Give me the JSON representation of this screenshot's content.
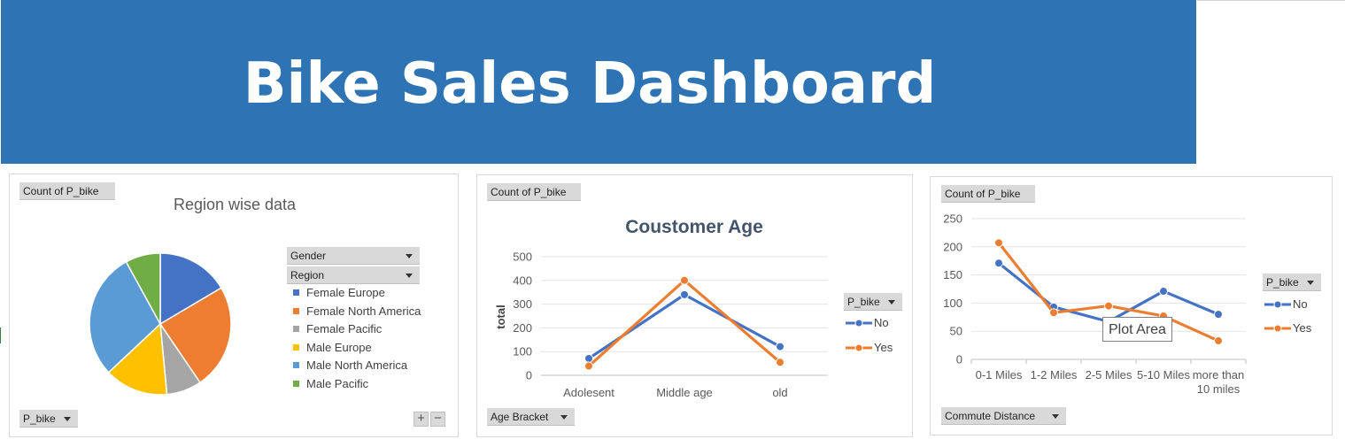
{
  "header": {
    "title": "Bike Sales Dashboard"
  },
  "colors": {
    "banner": "#2e74b5",
    "no": "#4472c4",
    "yes": "#ed7d31"
  },
  "pie_panel": {
    "field_button": "Count of P_bike",
    "filter_gender": "Gender",
    "filter_region": "Region",
    "filter_bottom": "P_bike",
    "plus": "+",
    "minus": "−"
  },
  "age_panel": {
    "field_button": "Count of P_bike",
    "legend_title": "P_bike",
    "axis_filter": "Age Bracket"
  },
  "commute_panel": {
    "field_button": "Count of P_bike",
    "legend_title": "P_bike",
    "axis_filter": "Commute Distance",
    "tooltip": "Plot Area"
  },
  "chart_data": [
    {
      "type": "pie",
      "title": "Region wise data",
      "categories": [
        "Female Europe",
        "Female North America",
        "Female Pacific",
        "Male Europe",
        "Male North America",
        "Male Pacific"
      ],
      "values": [
        16.5,
        24,
        8,
        14.5,
        29,
        8
      ],
      "colors": [
        "#4472c4",
        "#ed7d31",
        "#a5a5a5",
        "#ffc000",
        "#5b9bd5",
        "#70ad47"
      ],
      "legend": "right"
    },
    {
      "type": "line",
      "title": "Coustomer Age",
      "xlabel": "",
      "ylabel": "total",
      "categories": [
        "Adolesent",
        "Middle age",
        "old"
      ],
      "series": [
        {
          "name": "No",
          "values": [
            71,
            340,
            121
          ]
        },
        {
          "name": "Yes",
          "values": [
            39,
            400,
            55
          ]
        }
      ],
      "yticks": [
        0,
        100,
        200,
        300,
        400,
        500
      ],
      "ylim": [
        0,
        500
      ],
      "grid": true,
      "legend": "right"
    },
    {
      "type": "line",
      "title": "",
      "xlabel": "",
      "ylabel": "",
      "categories": [
        "0-1 Miles",
        "1-2 Miles",
        "2-5 Miles",
        "5-10 Miles",
        "more than 10 miles"
      ],
      "series": [
        {
          "name": "No",
          "values": [
            171,
            93,
            67,
            121,
            80
          ]
        },
        {
          "name": "Yes",
          "values": [
            207,
            83,
            95,
            77,
            33
          ]
        }
      ],
      "yticks": [
        0,
        50,
        100,
        150,
        200,
        250
      ],
      "ylim": [
        0,
        250
      ],
      "grid": true,
      "legend": "right"
    }
  ]
}
